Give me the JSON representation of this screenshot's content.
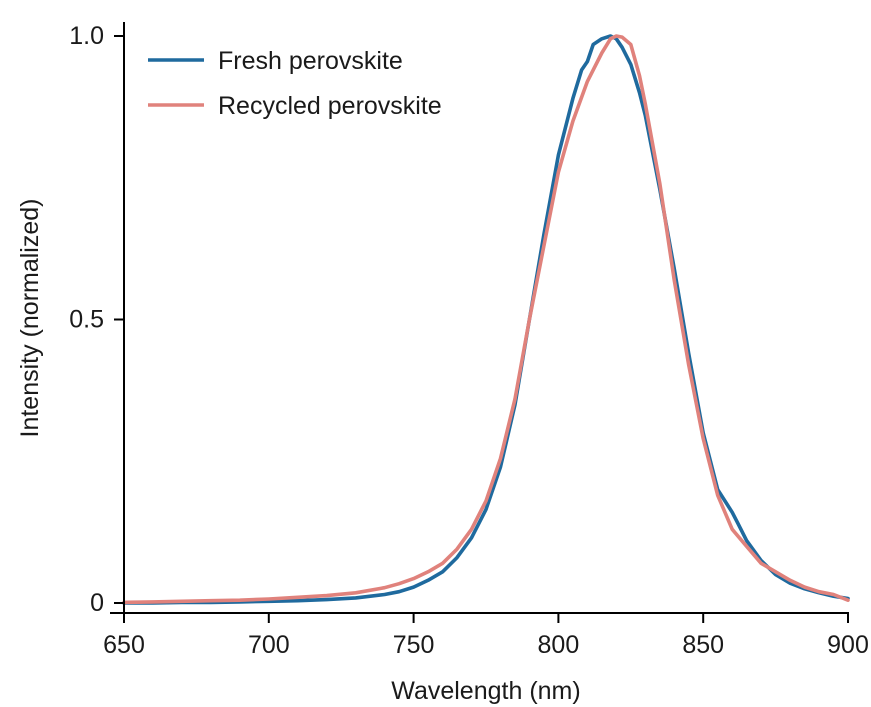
{
  "chart_data": {
    "type": "line",
    "title": "",
    "xlabel": "Wavelength (nm)",
    "ylabel": "Intensity (normalized)",
    "xlim": [
      650,
      900
    ],
    "ylim": [
      0,
      1.0
    ],
    "xticks": [
      650,
      700,
      750,
      800,
      850,
      900
    ],
    "xtick_labels": [
      "650",
      "700",
      "750",
      "800",
      "850",
      "900"
    ],
    "yticks": [
      0,
      0.5,
      1.0
    ],
    "ytick_labels": [
      "0",
      "0.5",
      "1.0"
    ],
    "grid": false,
    "legend_position": "top-left",
    "series": [
      {
        "name": "Fresh perovskite",
        "color": "#1f6a9e",
        "x": [
          650,
          660,
          670,
          680,
          690,
          700,
          710,
          720,
          730,
          740,
          745,
          750,
          755,
          760,
          765,
          770,
          775,
          780,
          785,
          790,
          795,
          800,
          805,
          808,
          810,
          812,
          815,
          818,
          820,
          822,
          825,
          828,
          830,
          835,
          840,
          845,
          850,
          855,
          860,
          862,
          865,
          870,
          875,
          880,
          885,
          890,
          895,
          900
        ],
        "y": [
          0.0,
          0.0,
          0.001,
          0.001,
          0.002,
          0.003,
          0.004,
          0.006,
          0.009,
          0.015,
          0.02,
          0.028,
          0.04,
          0.055,
          0.08,
          0.115,
          0.165,
          0.24,
          0.35,
          0.5,
          0.65,
          0.79,
          0.89,
          0.94,
          0.955,
          0.985,
          0.995,
          1.0,
          0.995,
          0.98,
          0.95,
          0.9,
          0.86,
          0.73,
          0.59,
          0.44,
          0.3,
          0.2,
          0.16,
          0.14,
          0.11,
          0.075,
          0.05,
          0.035,
          0.025,
          0.018,
          0.012,
          0.008
        ]
      },
      {
        "name": "Recycled perovskite",
        "color": "#e0827c",
        "x": [
          650,
          660,
          670,
          680,
          690,
          700,
          710,
          720,
          730,
          740,
          745,
          750,
          755,
          760,
          765,
          770,
          775,
          780,
          785,
          790,
          795,
          800,
          805,
          810,
          815,
          818,
          820,
          822,
          825,
          828,
          830,
          835,
          840,
          845,
          850,
          855,
          860,
          865,
          870,
          875,
          880,
          885,
          890,
          895,
          900
        ],
        "y": [
          0.001,
          0.002,
          0.003,
          0.004,
          0.005,
          0.007,
          0.01,
          0.013,
          0.018,
          0.027,
          0.034,
          0.043,
          0.055,
          0.07,
          0.095,
          0.13,
          0.18,
          0.255,
          0.36,
          0.5,
          0.63,
          0.76,
          0.85,
          0.92,
          0.97,
          0.995,
          1.0,
          0.998,
          0.985,
          0.93,
          0.88,
          0.74,
          0.57,
          0.42,
          0.29,
          0.19,
          0.13,
          0.1,
          0.07,
          0.055,
          0.04,
          0.028,
          0.02,
          0.015,
          0.005
        ]
      }
    ]
  }
}
